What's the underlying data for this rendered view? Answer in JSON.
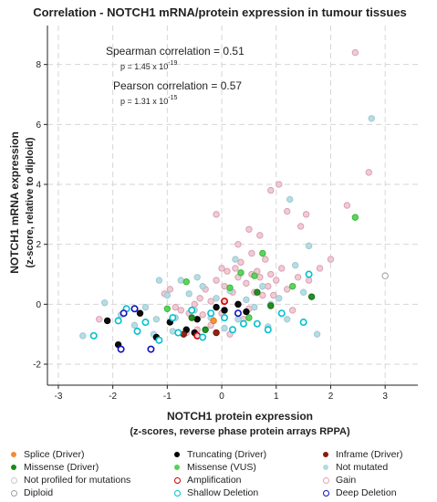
{
  "chart_data": {
    "type": "scatter",
    "title": "Correlation - NOTCH1 mRNA/protein expression in tumour tissues",
    "xlabel": "NOTCH1 protein expression",
    "xlabel2": "(z-scores, reverse phase protein arrays RPPA)",
    "ylabel": "NOTCH1 mRNA expression",
    "ylabel2": "(z-score, relative to diploid)",
    "xlim": [
      -3.2,
      3.6
    ],
    "ylim": [
      -2.7,
      9.3
    ],
    "xticks": [
      -3,
      -2,
      -1,
      0,
      1,
      2,
      3
    ],
    "yticks": [
      -2,
      0,
      2,
      4,
      6,
      8
    ],
    "grid": true,
    "annotations": [
      {
        "label": "Spearman correlation = 0.51",
        "p_text": "p = 1.45 x 10",
        "p_exp": "-19"
      },
      {
        "label": "Pearson correlation = 0.57",
        "p_text": "p = 1.31 x 10",
        "p_exp": "-15"
      }
    ],
    "categories": [
      {
        "key": "gain",
        "name": "Gain",
        "fill": "#f0c8d2",
        "stroke": "#d9a0b2",
        "points": [
          [
            -0.85,
            -0.1
          ],
          [
            -0.75,
            -0.2
          ],
          [
            -0.6,
            -0.3
          ],
          [
            -0.5,
            0.0
          ],
          [
            -0.4,
            0.2
          ],
          [
            -0.35,
            -0.35
          ],
          [
            -0.3,
            0.5
          ],
          [
            -0.2,
            0.1
          ],
          [
            -0.1,
            0.8
          ],
          [
            0.0,
            1.2
          ],
          [
            0.05,
            0.6
          ],
          [
            0.1,
            1.1
          ],
          [
            0.2,
            0.4
          ],
          [
            0.25,
            1.2
          ],
          [
            0.3,
            0.9
          ],
          [
            0.35,
            1.4
          ],
          [
            0.45,
            0.7
          ],
          [
            0.5,
            -0.15
          ],
          [
            0.55,
            1.0
          ],
          [
            0.6,
            0.4
          ],
          [
            0.65,
            1.1
          ],
          [
            0.7,
            0.9
          ],
          [
            0.75,
            0.3
          ],
          [
            0.8,
            1.5
          ],
          [
            0.85,
            0.6
          ],
          [
            0.9,
            1.0
          ],
          [
            0.95,
            0.3
          ],
          [
            1.0,
            0.8
          ],
          [
            1.1,
            1.2
          ],
          [
            1.2,
            0.5
          ],
          [
            1.3,
            -0.2
          ],
          [
            1.4,
            0.9
          ],
          [
            1.6,
            0.8
          ],
          [
            1.8,
            1.2
          ],
          [
            2.0,
            1.5
          ],
          [
            0.3,
            2.0
          ],
          [
            0.5,
            2.5
          ],
          [
            0.7,
            2.3
          ],
          [
            0.9,
            3.8
          ],
          [
            1.05,
            4.0
          ],
          [
            1.2,
            3.1
          ],
          [
            1.45,
            2.6
          ],
          [
            1.55,
            3.0
          ],
          [
            2.3,
            3.3
          ],
          [
            2.7,
            4.4
          ],
          [
            -0.1,
            3.0
          ],
          [
            0.55,
            1.7
          ],
          [
            0.4,
            -0.5
          ],
          [
            -0.45,
            -0.85
          ],
          [
            -0.2,
            -0.7
          ],
          [
            -0.65,
            -0.95
          ],
          [
            0.15,
            -1.0
          ],
          [
            -2.25,
            -0.5
          ],
          [
            -1.05,
            0.35
          ],
          [
            2.45,
            8.4
          ],
          [
            0.0,
            -0.3
          ],
          [
            -0.95,
            0.5
          ]
        ]
      },
      {
        "key": "not_mutated",
        "name": "Not mutated",
        "fill": "#b2dbe3",
        "stroke": "#a0c8d0",
        "points": [
          [
            -2.55,
            -1.05
          ],
          [
            -2.15,
            0.05
          ],
          [
            -1.85,
            -0.35
          ],
          [
            -1.6,
            -0.7
          ],
          [
            -1.4,
            -0.1
          ],
          [
            -1.2,
            -0.5
          ],
          [
            -1.0,
            0.3
          ],
          [
            -0.9,
            -0.9
          ],
          [
            -0.75,
            0.8
          ],
          [
            -0.6,
            0.35
          ],
          [
            -0.5,
            -0.2
          ],
          [
            -0.35,
            0.6
          ],
          [
            -0.2,
            -0.45
          ],
          [
            -0.1,
            0.2
          ],
          [
            0.05,
            -0.8
          ],
          [
            0.15,
            0.45
          ],
          [
            0.3,
            -0.5
          ],
          [
            0.45,
            0.15
          ],
          [
            0.6,
            -0.1
          ],
          [
            0.75,
            0.6
          ],
          [
            0.9,
            0.0
          ],
          [
            1.05,
            0.2
          ],
          [
            1.2,
            -0.5
          ],
          [
            1.35,
            1.3
          ],
          [
            1.5,
            0.4
          ],
          [
            1.6,
            1.95
          ],
          [
            1.75,
            -1.0
          ],
          [
            1.25,
            3.5
          ],
          [
            2.75,
            6.2
          ],
          [
            -1.15,
            0.8
          ],
          [
            -0.85,
            -0.45
          ],
          [
            0.85,
            -0.75
          ],
          [
            0.25,
            1.5
          ],
          [
            -1.25,
            -1.0
          ],
          [
            -0.45,
            0.9
          ]
        ]
      },
      {
        "key": "splice_driver",
        "name": "Splice (Driver)",
        "fill": "#f28c33",
        "stroke": "#e07a20",
        "points": [
          [
            -0.15,
            -0.55
          ]
        ]
      },
      {
        "key": "truncating_driver",
        "name": "Truncating (Driver)",
        "fill": "#000000",
        "stroke": "#000000",
        "points": [
          [
            -2.1,
            -0.55
          ],
          [
            -1.9,
            -1.35
          ],
          [
            -1.5,
            -0.3
          ],
          [
            -1.2,
            -1.1
          ],
          [
            -0.95,
            -0.6
          ],
          [
            -0.65,
            -0.85
          ],
          [
            -0.5,
            -0.95
          ],
          [
            -0.1,
            -0.1
          ],
          [
            0.05,
            -0.2
          ],
          [
            0.3,
            0.0
          ],
          [
            -0.45,
            -0.5
          ],
          [
            0.45,
            -0.25
          ]
        ]
      },
      {
        "key": "missense_driver",
        "name": "Missense (Driver)",
        "fill": "#1a8a1a",
        "stroke": "#117011",
        "points": [
          [
            -0.55,
            -0.45
          ],
          [
            0.65,
            0.4
          ],
          [
            0.9,
            -0.05
          ],
          [
            1.65,
            0.25
          ],
          [
            -0.3,
            -0.85
          ]
        ]
      },
      {
        "key": "missense_vus",
        "name": "Missense (VUS)",
        "fill": "#55d255",
        "stroke": "#3ab83a",
        "points": [
          [
            -1.0,
            -0.15
          ],
          [
            0.35,
            1.05
          ],
          [
            0.6,
            0.95
          ],
          [
            0.75,
            1.7
          ],
          [
            -0.65,
            0.75
          ],
          [
            0.15,
            0.55
          ],
          [
            1.3,
            0.6
          ],
          [
            2.45,
            2.9
          ],
          [
            0.5,
            -0.45
          ]
        ]
      },
      {
        "key": "inframe_driver",
        "name": "Inframe (Driver)",
        "fill": "#8b1a0a",
        "stroke": "#6e1005",
        "points": [
          [
            -0.1,
            -0.95
          ],
          [
            -0.7,
            -1.0
          ]
        ]
      },
      {
        "key": "amplification",
        "name": "Amplification",
        "fill": "#f0c8d2",
        "stroke": "#cc0000",
        "points": [
          [
            0.05,
            0.1
          ],
          [
            -0.45,
            -1.05
          ]
        ]
      },
      {
        "key": "shallow_deletion",
        "name": "Shallow Deletion",
        "fill": "#ffffff",
        "stroke": "#00c0d0",
        "points": [
          [
            -2.35,
            -1.05
          ],
          [
            -1.9,
            -0.55
          ],
          [
            -1.55,
            -0.9
          ],
          [
            -1.4,
            -0.6
          ],
          [
            -1.15,
            -1.2
          ],
          [
            -0.9,
            -0.45
          ],
          [
            -0.55,
            -0.2
          ],
          [
            -0.35,
            -1.1
          ],
          [
            -0.2,
            -0.3
          ],
          [
            0.2,
            -0.85
          ],
          [
            0.4,
            -0.65
          ],
          [
            0.65,
            -0.65
          ],
          [
            0.85,
            -0.85
          ],
          [
            1.1,
            -0.3
          ],
          [
            1.5,
            -0.6
          ],
          [
            1.6,
            1.0
          ],
          [
            -1.75,
            -0.15
          ],
          [
            -0.8,
            -0.95
          ],
          [
            0.05,
            -0.45
          ]
        ]
      },
      {
        "key": "deep_deletion",
        "name": "Deep Deletion",
        "fill": "#ffffff",
        "stroke": "#1010c0",
        "points": [
          [
            -1.85,
            -1.5
          ],
          [
            -1.6,
            -0.15
          ],
          [
            -1.3,
            -1.5
          ],
          [
            0.3,
            -0.3
          ],
          [
            -1.8,
            -0.3
          ]
        ]
      },
      {
        "key": "not_profiled",
        "name": "Not profiled for mutations",
        "fill": "#ffffff",
        "stroke": "#a0a0a0",
        "points": [
          [
            3.0,
            0.95
          ]
        ]
      },
      {
        "key": "diploid",
        "name": "Diploid",
        "fill": "#ffffff",
        "stroke": "#a0a0a0",
        "points": []
      }
    ]
  },
  "legend": [
    {
      "label": "Splice (Driver)",
      "type": "filled",
      "color": "#f28c33"
    },
    {
      "label": "Truncating (Driver)",
      "type": "filled",
      "color": "#000000"
    },
    {
      "label": "Inframe (Driver)",
      "type": "filled",
      "color": "#8b1a0a"
    },
    {
      "label": "Missense (Driver)",
      "type": "filled",
      "color": "#1a8a1a"
    },
    {
      "label": "Missense (VUS)",
      "type": "filled",
      "color": "#55d255"
    },
    {
      "label": "Not mutated",
      "type": "filled",
      "color": "#b2dbe3"
    },
    {
      "label": "Not profiled for mutations",
      "type": "ring",
      "color": "#c8c8c8"
    },
    {
      "label": "Amplification",
      "type": "ring",
      "color": "#cc0000"
    },
    {
      "label": "Gain",
      "type": "ring",
      "color": "#e8a0b4"
    },
    {
      "label": "Diploid",
      "type": "ring",
      "color": "#a0a0a0"
    },
    {
      "label": "Shallow Deletion",
      "type": "ring",
      "color": "#00c0d0"
    },
    {
      "label": "Deep Deletion",
      "type": "ring",
      "color": "#1010c0"
    }
  ]
}
